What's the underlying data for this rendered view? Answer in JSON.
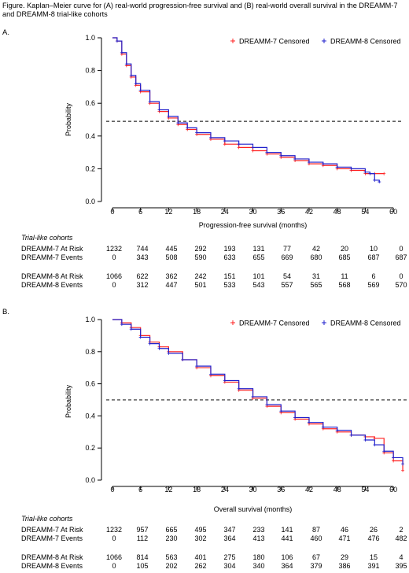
{
  "caption": "Figure. Kaplan–Meier curve for (A) real-world progression-free survival and (B) real-world overall survival in the DREAMM-7 and DREAMM-8 trial-like cohorts",
  "colors": {
    "dreamm7": "#ff2020",
    "dreamm8": "#2020cc",
    "axis": "#000000",
    "refline": "#000000"
  },
  "chart_data": [
    {
      "panel": "A.",
      "type": "line",
      "xlabel": "Progression-free survival (months)",
      "ylabel": "Probability",
      "xlim": [
        -1,
        62
      ],
      "ylim": [
        0,
        1.0
      ],
      "xticks": [
        0,
        6,
        12,
        18,
        24,
        30,
        36,
        42,
        48,
        54,
        60
      ],
      "yticks": [
        "0.0",
        "0.2",
        "0.4",
        "0.6",
        "0.8",
        "1.0"
      ],
      "reference_line_y": 0.49,
      "legend_position": "top-right",
      "legend": [
        "DREAMM-7 Censored",
        "DREAMM-8 Censored"
      ],
      "series": [
        {
          "name": "DREAMM-7 Censored",
          "x": [
            0,
            1,
            2,
            3,
            4,
            5,
            6,
            8,
            10,
            12,
            14,
            16,
            18,
            21,
            24,
            27,
            30,
            33,
            36,
            39,
            42,
            45,
            48,
            51,
            54,
            56,
            58
          ],
          "y": [
            1.0,
            0.98,
            0.9,
            0.83,
            0.76,
            0.71,
            0.67,
            0.6,
            0.55,
            0.51,
            0.47,
            0.44,
            0.41,
            0.38,
            0.35,
            0.33,
            0.31,
            0.29,
            0.27,
            0.25,
            0.23,
            0.22,
            0.2,
            0.19,
            0.17,
            0.17,
            0.17
          ]
        },
        {
          "name": "DREAMM-8 Censored",
          "x": [
            0,
            1,
            2,
            3,
            4,
            5,
            6,
            8,
            10,
            12,
            14,
            16,
            18,
            21,
            24,
            27,
            30,
            33,
            36,
            39,
            42,
            45,
            48,
            51,
            54,
            55,
            56,
            57
          ],
          "y": [
            1.0,
            0.98,
            0.91,
            0.84,
            0.77,
            0.72,
            0.68,
            0.61,
            0.56,
            0.52,
            0.48,
            0.45,
            0.42,
            0.39,
            0.37,
            0.35,
            0.33,
            0.3,
            0.28,
            0.26,
            0.24,
            0.23,
            0.21,
            0.2,
            0.18,
            0.17,
            0.13,
            0.12
          ]
        }
      ]
    },
    {
      "panel": "B.",
      "type": "line",
      "xlabel": "Overall survival (months)",
      "ylabel": "Probability",
      "xlim": [
        -1,
        63
      ],
      "ylim": [
        0,
        1.0
      ],
      "xticks": [
        0,
        6,
        12,
        18,
        24,
        30,
        36,
        42,
        48,
        54,
        60
      ],
      "yticks": [
        "0.0",
        "0.2",
        "0.4",
        "0.6",
        "0.8",
        "1.0"
      ],
      "reference_line_y": 0.5,
      "legend_position": "top-right",
      "legend": [
        "DREAMM-7 Censored",
        "DREAMM-8 Censored"
      ],
      "series": [
        {
          "name": "DREAMM-7 Censored",
          "x": [
            0,
            2,
            4,
            6,
            8,
            10,
            12,
            15,
            18,
            21,
            24,
            27,
            30,
            33,
            36,
            39,
            42,
            45,
            48,
            51,
            54,
            56,
            58,
            60,
            62
          ],
          "y": [
            1.0,
            0.98,
            0.95,
            0.9,
            0.86,
            0.83,
            0.8,
            0.75,
            0.7,
            0.65,
            0.61,
            0.56,
            0.51,
            0.46,
            0.42,
            0.38,
            0.35,
            0.32,
            0.3,
            0.28,
            0.27,
            0.26,
            0.17,
            0.12,
            0.06
          ]
        },
        {
          "name": "DREAMM-8 Censored",
          "x": [
            0,
            2,
            4,
            6,
            8,
            10,
            12,
            15,
            18,
            21,
            24,
            27,
            30,
            33,
            36,
            39,
            42,
            45,
            48,
            51,
            54,
            56,
            58,
            60,
            62
          ],
          "y": [
            1.0,
            0.97,
            0.94,
            0.89,
            0.85,
            0.82,
            0.79,
            0.75,
            0.71,
            0.66,
            0.62,
            0.57,
            0.52,
            0.47,
            0.43,
            0.39,
            0.36,
            0.33,
            0.31,
            0.28,
            0.25,
            0.22,
            0.18,
            0.14,
            0.1
          ]
        }
      ]
    }
  ],
  "tables": [
    {
      "title": "Trial-like cohorts",
      "rows": [
        {
          "label": "DREAMM-7 At Risk",
          "values": [
            "1232",
            "744",
            "445",
            "292",
            "193",
            "131",
            "77",
            "42",
            "20",
            "10",
            "0"
          ]
        },
        {
          "label": "DREAMM-7 Events",
          "values": [
            "0",
            "343",
            "508",
            "590",
            "633",
            "655",
            "669",
            "680",
            "685",
            "687",
            "687"
          ]
        },
        {
          "label": "DREAMM-8 At Risk",
          "values": [
            "1066",
            "622",
            "362",
            "242",
            "151",
            "101",
            "54",
            "31",
            "11",
            "6",
            "0"
          ]
        },
        {
          "label": "DREAMM-8 Events",
          "values": [
            "0",
            "312",
            "447",
            "501",
            "533",
            "543",
            "557",
            "565",
            "568",
            "569",
            "570"
          ]
        }
      ]
    },
    {
      "title": "Trial-like cohorts",
      "rows": [
        {
          "label": "DREAMM-7 At Risk",
          "values": [
            "1232",
            "957",
            "665",
            "495",
            "347",
            "233",
            "141",
            "87",
            "46",
            "26",
            "2"
          ]
        },
        {
          "label": "DREAMM-7 Events",
          "values": [
            "0",
            "112",
            "230",
            "302",
            "364",
            "413",
            "441",
            "460",
            "471",
            "476",
            "482"
          ]
        },
        {
          "label": "DREAMM-8 At Risk",
          "values": [
            "1066",
            "814",
            "563",
            "401",
            "275",
            "180",
            "106",
            "67",
            "29",
            "15",
            "4"
          ]
        },
        {
          "label": "DREAMM-8 Events",
          "values": [
            "0",
            "105",
            "202",
            "262",
            "304",
            "340",
            "364",
            "379",
            "386",
            "391",
            "395"
          ]
        }
      ]
    }
  ]
}
